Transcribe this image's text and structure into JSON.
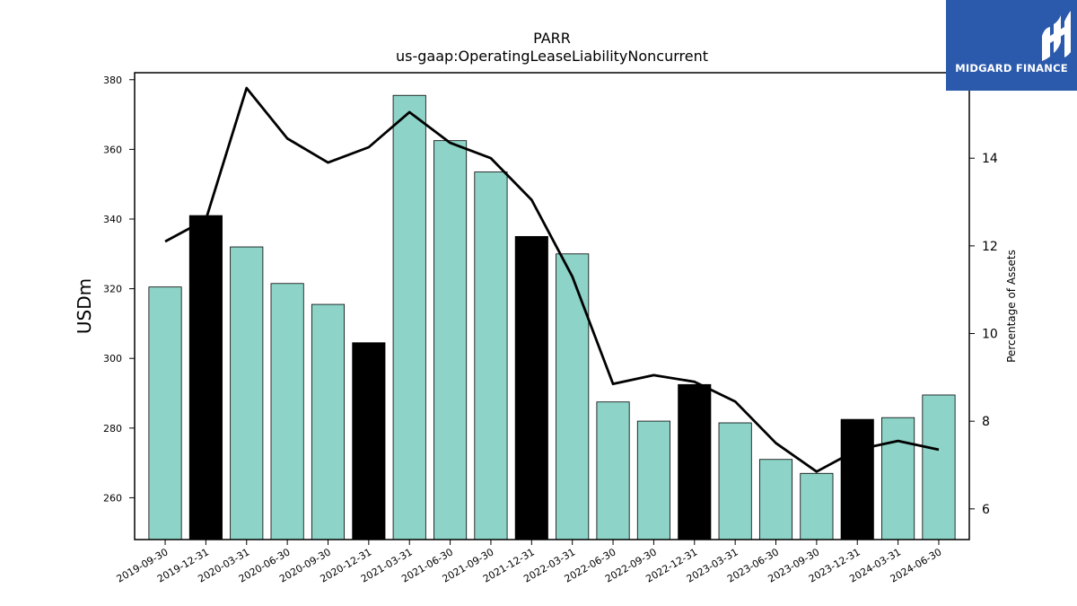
{
  "brand": {
    "name": "MIDGARD FINANCE",
    "bg_color": "#2b5aad"
  },
  "chart_data": {
    "type": "bar",
    "title": "PARR",
    "subtitle": "us-gaap:OperatingLeaseLiabilityNoncurrent",
    "ylabel": "USDm",
    "y2label": "Percentage of Assets",
    "ylim": [
      248,
      382
    ],
    "y2lim": [
      5.3,
      15.95
    ],
    "yticks": [
      260,
      280,
      300,
      320,
      340,
      360,
      380
    ],
    "y2ticks": [
      6,
      8,
      10,
      12,
      14
    ],
    "categories": [
      "2019-09-30",
      "2019-12-31",
      "2020-03-31",
      "2020-06-30",
      "2020-09-30",
      "2020-12-31",
      "2021-03-31",
      "2021-06-30",
      "2021-09-30",
      "2021-12-31",
      "2022-03-31",
      "2022-06-30",
      "2022-09-30",
      "2022-12-31",
      "2023-03-31",
      "2023-06-30",
      "2023-09-30",
      "2023-12-31",
      "2024-03-31",
      "2024-06-30"
    ],
    "series": [
      {
        "kind": "bar",
        "axis": "left",
        "values": [
          320.5,
          341,
          332,
          321.5,
          315.5,
          304.5,
          375.5,
          362.5,
          353.5,
          335,
          330,
          287.5,
          282,
          292.5,
          281.5,
          271,
          267,
          282.5,
          283,
          289.5
        ],
        "highlight": [
          false,
          true,
          false,
          false,
          false,
          true,
          false,
          false,
          false,
          true,
          false,
          false,
          false,
          true,
          false,
          false,
          false,
          true,
          false,
          false
        ]
      },
      {
        "kind": "line",
        "axis": "right",
        "values": [
          12.1,
          12.6,
          15.6,
          14.45,
          13.9,
          14.25,
          15.05,
          14.35,
          14.0,
          13.05,
          11.3,
          8.85,
          9.05,
          8.9,
          8.45,
          7.5,
          6.85,
          7.35,
          7.55,
          7.35
        ]
      }
    ],
    "colors": {
      "bar": "#8dd3c7",
      "bar_highlight": "#000000",
      "line": "#000000"
    },
    "grid": false
  }
}
